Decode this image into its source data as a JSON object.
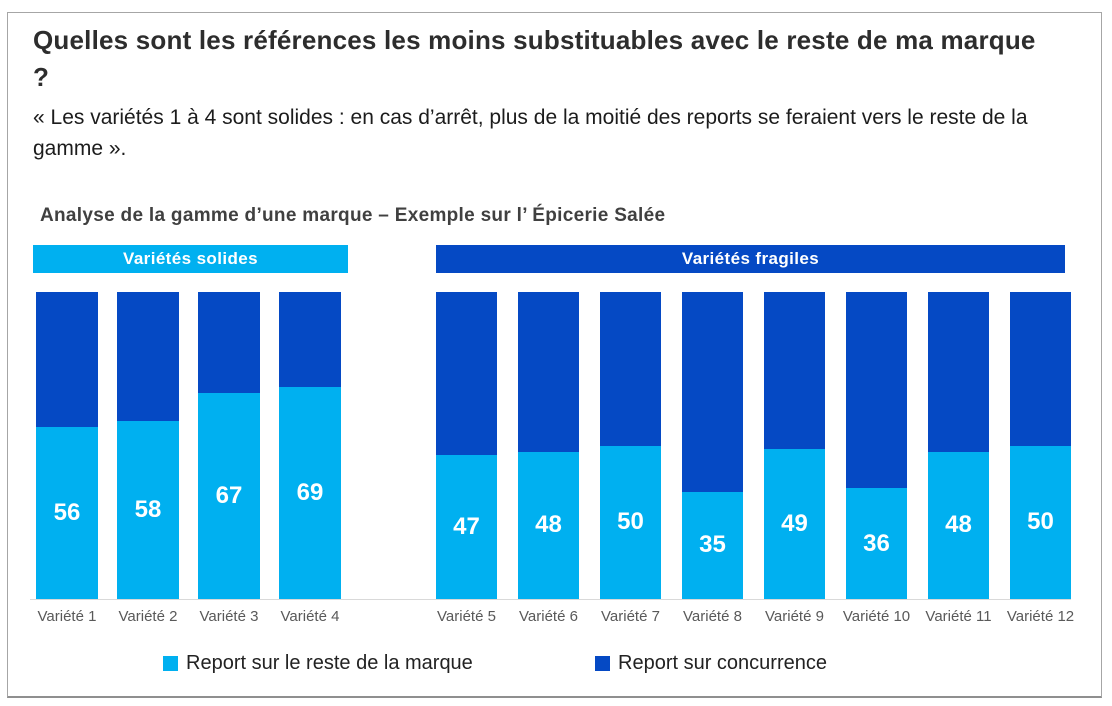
{
  "page": {
    "title": "Quelles sont les références les moins substituables avec le reste de ma marque ?",
    "quote": "« Les variétés 1 à 4 sont solides : en cas d’arrêt, plus de la moitié des reports se feraient vers le reste de la gamme ».",
    "section_heading": "Analyse de la gamme d’une marque – Exemple sur l’ Épicerie Salée"
  },
  "colors": {
    "light_blue": "#00B0F0",
    "dark_blue": "#0549C4",
    "axis_label": "#595959",
    "gridline": "#d9d9d9"
  },
  "group_headers": [
    {
      "label": "Variétés solides"
    },
    {
      "label": "Variétés fragiles"
    }
  ],
  "legend": [
    {
      "label": "Report sur le reste de la marque",
      "color": "#00B0F0"
    },
    {
      "label": "Report sur concurrence",
      "color": "#0549C4"
    }
  ],
  "chart_data": {
    "type": "bar",
    "stacked": true,
    "percent_stacked": true,
    "title": "Analyse de la gamme d’une marque – Exemple sur l’ Épicerie Salée",
    "categories": [
      "Variété 1",
      "Variété 2",
      "Variété 3",
      "Variété 4",
      "Variété 5",
      "Variété 6",
      "Variété 7",
      "Variété 8",
      "Variété 9",
      "Variété 10",
      "Variété 11",
      "Variété 12"
    ],
    "series": [
      {
        "name": "Report sur le reste de la marque",
        "color": "#00B0F0",
        "values": [
          56,
          58,
          67,
          69,
          47,
          48,
          50,
          35,
          49,
          36,
          48,
          50
        ]
      },
      {
        "name": "Report sur concurrence",
        "color": "#0549C4",
        "values": [
          44,
          42,
          33,
          31,
          53,
          52,
          50,
          65,
          51,
          64,
          52,
          50
        ]
      }
    ],
    "groups": [
      {
        "label": "Variétés solides",
        "category_indexes": [
          0,
          1,
          2,
          3
        ]
      },
      {
        "label": "Variétés fragiles",
        "category_indexes": [
          4,
          5,
          6,
          7,
          8,
          9,
          10,
          11
        ]
      }
    ],
    "ylim": [
      0,
      100
    ],
    "grid": "baseline only",
    "value_labels": "bottom segment only",
    "legend_position": "bottom"
  }
}
